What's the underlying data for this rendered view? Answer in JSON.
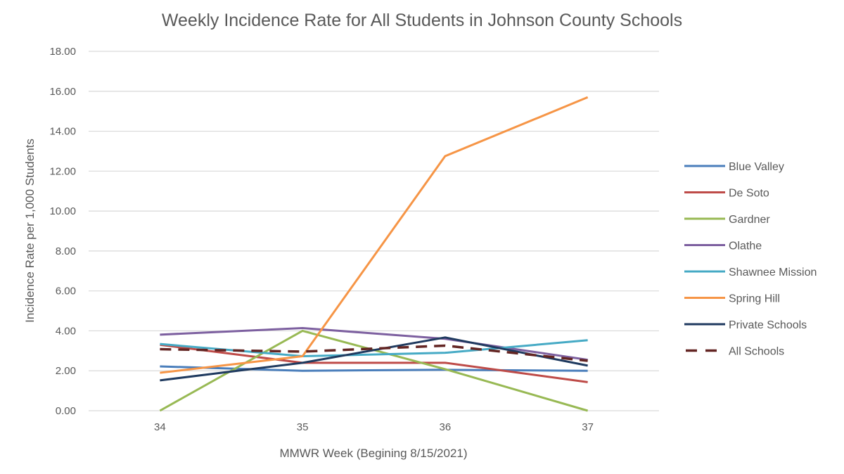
{
  "chart_data": {
    "type": "line",
    "title": "Weekly Incidence Rate for All Students in Johnson County Schools",
    "xlabel": "MMWR Week (Begining 8/15/2021)",
    "ylabel": "Incidence Rate per 1,000 Students",
    "categories": [
      "34",
      "35",
      "36",
      "37"
    ],
    "ylim": [
      0,
      18
    ],
    "yticks": [
      "0.00",
      "2.00",
      "4.00",
      "6.00",
      "8.00",
      "10.00",
      "12.00",
      "14.00",
      "16.00",
      "18.00"
    ],
    "grid": true,
    "legend_position": "right",
    "series": [
      {
        "name": "Blue Valley",
        "color": "#4a7ebb",
        "dashed": false,
        "values": [
          2.22,
          2.0,
          2.05,
          2.0
        ]
      },
      {
        "name": "De Soto",
        "color": "#be4b48",
        "dashed": false,
        "values": [
          3.3,
          2.4,
          2.4,
          1.43
        ]
      },
      {
        "name": "Gardner",
        "color": "#98b954",
        "dashed": false,
        "values": [
          0.0,
          4.0,
          2.08,
          0.0
        ]
      },
      {
        "name": "Olathe",
        "color": "#7d60a0",
        "dashed": false,
        "values": [
          3.81,
          4.14,
          3.6,
          2.55
        ]
      },
      {
        "name": "Shawnee Mission",
        "color": "#46aac5",
        "dashed": false,
        "values": [
          3.34,
          2.73,
          2.9,
          3.53
        ]
      },
      {
        "name": "Spring Hill",
        "color": "#f69546",
        "dashed": false,
        "values": [
          1.9,
          2.73,
          12.75,
          15.7
        ]
      },
      {
        "name": "Private Schools",
        "color": "#1f3a5f",
        "dashed": false,
        "values": [
          1.52,
          2.4,
          3.67,
          2.26
        ]
      },
      {
        "name": "All Schools",
        "color": "#632523",
        "dashed": true,
        "values": [
          3.08,
          2.96,
          3.26,
          2.5
        ]
      }
    ]
  }
}
